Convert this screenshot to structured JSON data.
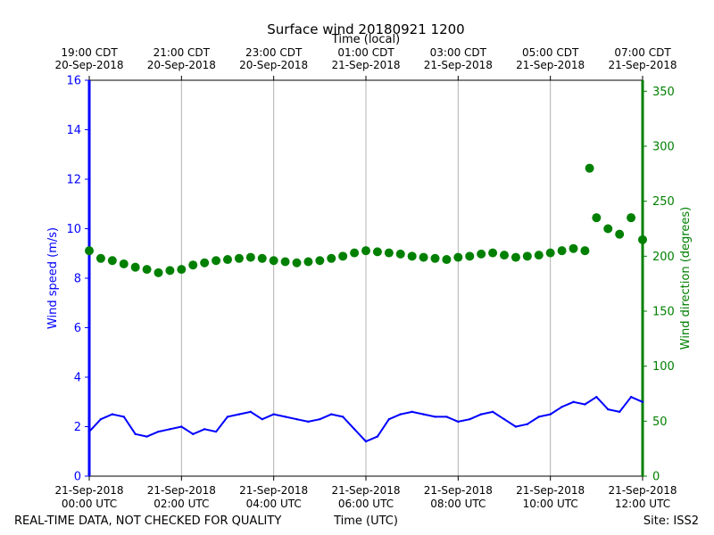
{
  "chart_data": {
    "type": "line",
    "title": "Surface wind 20180921 1200",
    "top_axis_label": "Time (local)",
    "xlabel": "Time (UTC)",
    "ylabel_left": "Wind speed (m/s)",
    "ylabel_right": "Wind direction (degrees)",
    "footer_left": "REAL-TIME DATA, NOT CHECKED FOR QUALITY",
    "footer_right": "Site: ISS2",
    "x_range_hours": [
      0,
      12
    ],
    "ylim_left": [
      0,
      16
    ],
    "ylim_right": [
      0,
      360
    ],
    "grid": "vertical",
    "colors": {
      "speed": "#0000ff",
      "direction": "#008000",
      "grid": "#b0b0b0",
      "axis": "#000000"
    },
    "bottom_ticks": [
      {
        "hour": 0,
        "date": "21-Sep-2018",
        "time": "00:00 UTC"
      },
      {
        "hour": 2,
        "date": "21-Sep-2018",
        "time": "02:00 UTC"
      },
      {
        "hour": 4,
        "date": "21-Sep-2018",
        "time": "04:00 UTC"
      },
      {
        "hour": 6,
        "date": "21-Sep-2018",
        "time": "06:00 UTC"
      },
      {
        "hour": 8,
        "date": "21-Sep-2018",
        "time": "08:00 UTC"
      },
      {
        "hour": 10,
        "date": "21-Sep-2018",
        "time": "10:00 UTC"
      },
      {
        "hour": 12,
        "date": "21-Sep-2018",
        "time": "12:00 UTC"
      }
    ],
    "top_ticks": [
      {
        "hour": 0,
        "time": "19:00 CDT",
        "date": "20-Sep-2018"
      },
      {
        "hour": 2,
        "time": "21:00 CDT",
        "date": "20-Sep-2018"
      },
      {
        "hour": 4,
        "time": "23:00 CDT",
        "date": "20-Sep-2018"
      },
      {
        "hour": 6,
        "time": "01:00 CDT",
        "date": "21-Sep-2018"
      },
      {
        "hour": 8,
        "time": "03:00 CDT",
        "date": "21-Sep-2018"
      },
      {
        "hour": 10,
        "time": "05:00 CDT",
        "date": "21-Sep-2018"
      },
      {
        "hour": 12,
        "time": "07:00 CDT",
        "date": "21-Sep-2018"
      }
    ],
    "left_ticks": [
      0,
      2,
      4,
      6,
      8,
      10,
      12,
      14,
      16
    ],
    "right_ticks": [
      0,
      50,
      100,
      150,
      200,
      250,
      300,
      350
    ],
    "series": [
      {
        "name": "Wind speed",
        "axis": "left",
        "style": "line",
        "x": [
          0,
          0.25,
          0.5,
          0.75,
          1,
          1.25,
          1.5,
          1.75,
          2,
          2.25,
          2.5,
          2.75,
          3,
          3.25,
          3.5,
          3.75,
          4,
          4.25,
          4.5,
          4.75,
          5,
          5.25,
          5.5,
          5.75,
          6,
          6.25,
          6.5,
          6.75,
          7,
          7.25,
          7.5,
          7.75,
          8,
          8.25,
          8.5,
          8.75,
          9,
          9.25,
          9.5,
          9.75,
          10,
          10.25,
          10.5,
          10.75,
          11,
          11.25,
          11.5,
          11.75,
          12
        ],
        "values": [
          1.8,
          2.3,
          2.5,
          2.4,
          1.7,
          1.6,
          1.8,
          1.9,
          2.0,
          1.7,
          1.9,
          1.8,
          2.4,
          2.5,
          2.6,
          2.3,
          2.5,
          2.4,
          2.3,
          2.2,
          2.3,
          2.5,
          2.4,
          1.9,
          1.4,
          1.6,
          2.3,
          2.5,
          2.6,
          2.5,
          2.4,
          2.4,
          2.2,
          2.3,
          2.5,
          2.6,
          2.3,
          2.0,
          2.1,
          2.4,
          2.5,
          2.8,
          3.0,
          2.9,
          3.2,
          2.7,
          2.6,
          3.2,
          3.0
        ]
      },
      {
        "name": "Wind direction",
        "axis": "right",
        "style": "scatter",
        "x": [
          0,
          0.25,
          0.5,
          0.75,
          1,
          1.25,
          1.5,
          1.75,
          2,
          2.25,
          2.5,
          2.75,
          3,
          3.25,
          3.5,
          3.75,
          4,
          4.25,
          4.5,
          4.75,
          5,
          5.25,
          5.5,
          5.75,
          6,
          6.25,
          6.5,
          6.75,
          7,
          7.25,
          7.5,
          7.75,
          8,
          8.25,
          8.5,
          8.75,
          9,
          9.25,
          9.5,
          9.75,
          10,
          10.25,
          10.5,
          10.75,
          10.85,
          11,
          11.25,
          11.5,
          11.75,
          12
        ],
        "values": [
          205,
          198,
          196,
          193,
          190,
          188,
          185,
          187,
          188,
          192,
          194,
          196,
          197,
          198,
          199,
          198,
          196,
          195,
          194,
          195,
          196,
          198,
          200,
          203,
          205,
          204,
          203,
          202,
          200,
          199,
          198,
          197,
          199,
          200,
          202,
          203,
          201,
          199,
          200,
          201,
          203,
          205,
          207,
          205,
          280,
          235,
          225,
          220,
          235,
          215
        ]
      }
    ]
  }
}
